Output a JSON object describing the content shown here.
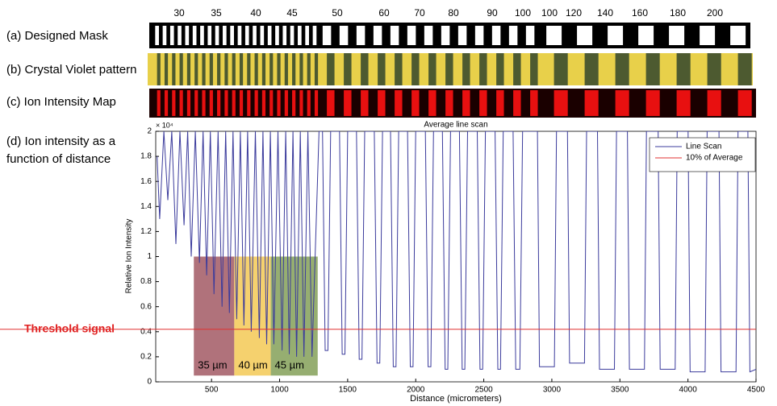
{
  "panel_labels": [
    "(a) Designed Mask",
    "(b) Crystal Violet pattern",
    "(c) Ion Intensity Map"
  ],
  "panel_d_label": [
    "(d) Ion intensity as a",
    "function of distance"
  ],
  "mask_labels": [
    "30",
    "35",
    "40",
    "45",
    "50",
    "60",
    "70",
    "80",
    "90",
    "100",
    "100",
    "120",
    "140",
    "160",
    "180",
    "200"
  ],
  "threshold_label": "Threshold signal",
  "chart_data": {
    "type": "line",
    "title": "Average line scan",
    "y_exponent": "× 10⁴",
    "xlabel": "Distance (micrometers)",
    "ylabel": "Relative Ion Intensity",
    "xlim": [
      90,
      4500
    ],
    "ylim": [
      0,
      2
    ],
    "xticks": [
      500,
      1000,
      1500,
      2000,
      2500,
      3000,
      3500,
      4000,
      4500
    ],
    "yticks": [
      0,
      0.2,
      0.4,
      0.6,
      0.8,
      1,
      1.2,
      1.4,
      1.6,
      1.8,
      2
    ],
    "x": [
      100,
      119,
      150,
      179,
      208,
      238,
      268,
      298,
      325,
      351,
      381,
      411,
      438,
      464,
      491,
      518,
      548,
      577,
      604,
      631,
      658,
      685,
      712,
      738,
      765,
      792,
      822,
      851,
      878,
      905,
      932,
      958,
      988,
      1018,
      1045,
      1071,
      1098,
      1125,
      1152,
      1179,
      1208,
      1238,
      1290,
      1315,
      1335,
      1355,
      1375,
      1440,
      1460,
      1480,
      1500,
      1565,
      1585,
      1605,
      1625,
      1696,
      1716,
      1736,
      1756,
      1815,
      1835,
      1855,
      1875,
      1940,
      1960,
      1980,
      2000,
      2071,
      2091,
      2111,
      2131,
      2196,
      2216,
      2236,
      2256,
      2321,
      2341,
      2361,
      2381,
      2452,
      2472,
      2492,
      2512,
      2583,
      2603,
      2623,
      2643,
      2715,
      2735,
      2765,
      2785,
      2894,
      2909,
      3019,
      3034,
      3115,
      3130,
      3240,
      3255,
      3335,
      3350,
      3460,
      3475,
      3555,
      3570,
      3680,
      3695,
      3781,
      3796,
      3906,
      3921,
      4001,
      4016,
      4126,
      4141,
      4228,
      4243,
      4353,
      4368,
      4440,
      4455,
      4500
    ],
    "series": [
      {
        "name": "Line Scan",
        "color": "#3b3b9c",
        "values": [
          1.8,
          1.3,
          2,
          1.45,
          2,
          1.1,
          2,
          1.25,
          2,
          1.0,
          2,
          0.95,
          2,
          0.85,
          2,
          0.7,
          2,
          0.6,
          2,
          0.55,
          2,
          0.5,
          2,
          0.45,
          2,
          0.4,
          2,
          0.35,
          2,
          0.3,
          2,
          0.3,
          2,
          0.25,
          2,
          0.22,
          2,
          0.2,
          2,
          0.2,
          2,
          0.2,
          2,
          2,
          0.25,
          0.25,
          2,
          2,
          0.22,
          0.22,
          2,
          2,
          0.18,
          0.18,
          2,
          2,
          0.15,
          0.15,
          2,
          2,
          0.12,
          0.12,
          2,
          2,
          0.12,
          0.12,
          2,
          2,
          0.12,
          0.12,
          2,
          2,
          0.1,
          0.1,
          2,
          2,
          0.1,
          0.1,
          2,
          2,
          0.1,
          0.1,
          2,
          2,
          0.1,
          0.1,
          2,
          2,
          0.1,
          0.1,
          2,
          2,
          0.12,
          0.12,
          2,
          2,
          0.15,
          0.15,
          2,
          2,
          0.1,
          0.1,
          2,
          2,
          0.1,
          0.1,
          2,
          2,
          0.1,
          0.1,
          2,
          2,
          0.08,
          0.08,
          2,
          2,
          0.08,
          0.08,
          2,
          2,
          0.08,
          0.1
        ]
      }
    ],
    "hlines": [
      {
        "name": "10% of Average",
        "color": "#e03030",
        "value": 0.42
      }
    ],
    "regions": [
      {
        "label": "35 µm",
        "color": "#9c4f5a",
        "x0": 370,
        "x1": 667,
        "y0": 0.05,
        "y1": 1
      },
      {
        "label": "40 µm",
        "color": "#f2c64a",
        "x0": 667,
        "x1": 935,
        "y0": 0.05,
        "y1": 1
      },
      {
        "label": "45 µm",
        "color": "#7c9a4e",
        "x0": 935,
        "x1": 1280,
        "y0": 0.05,
        "y1": 1
      }
    ]
  }
}
